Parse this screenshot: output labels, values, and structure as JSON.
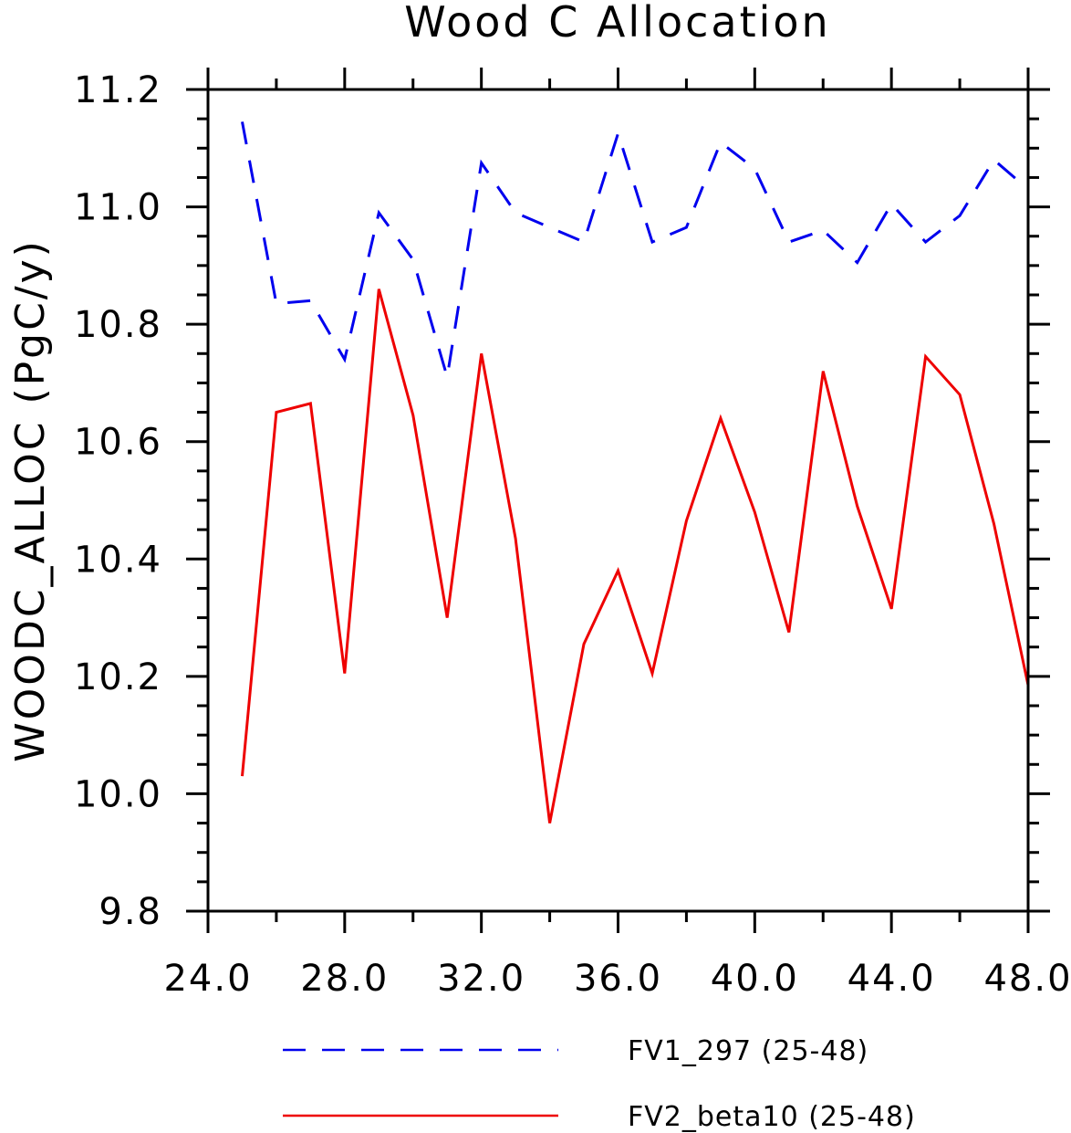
{
  "chart_data": {
    "type": "line",
    "title": "Wood C Allocation",
    "xlabel": "",
    "ylabel": "WOODC_ALLOC  (PgC/y)",
    "xlim": [
      24,
      48
    ],
    "ylim": [
      9.8,
      11.2
    ],
    "x_ticks": [
      24,
      28,
      32,
      36,
      40,
      44,
      48
    ],
    "x_tick_labels": [
      "24.0",
      "28.0",
      "32.0",
      "36.0",
      "40.0",
      "44.0",
      "48.0"
    ],
    "y_ticks": [
      9.8,
      10.0,
      10.2,
      10.4,
      10.6,
      10.8,
      11.0,
      11.2
    ],
    "y_tick_labels": [
      "9.8",
      "10.0",
      "10.2",
      "10.4",
      "10.6",
      "10.8",
      "11.0",
      "11.2"
    ],
    "grid": false,
    "legend_position": "bottom",
    "x": [
      25,
      26,
      27,
      28,
      29,
      30,
      31,
      32,
      33,
      34,
      35,
      36,
      37,
      38,
      39,
      40,
      41,
      42,
      43,
      44,
      45,
      46,
      47,
      48
    ],
    "series": [
      {
        "name": "FV1_297 (25-48)",
        "color": "#0000ee",
        "style": "dashed",
        "values": [
          11.145,
          10.835,
          10.84,
          10.74,
          10.99,
          10.91,
          10.71,
          11.075,
          10.99,
          10.965,
          10.94,
          11.125,
          10.94,
          10.965,
          11.11,
          11.065,
          10.94,
          10.96,
          10.905,
          11.005,
          10.94,
          10.985,
          11.08,
          11.03
        ]
      },
      {
        "name": "FV2_beta10 (25-48)",
        "color": "#ee0000",
        "style": "solid",
        "values": [
          10.03,
          10.65,
          10.665,
          10.205,
          10.86,
          10.645,
          10.3,
          10.75,
          10.435,
          9.95,
          10.255,
          10.38,
          10.205,
          10.465,
          10.64,
          10.48,
          10.275,
          10.72,
          10.49,
          10.315,
          10.745,
          10.68,
          10.46,
          10.185
        ]
      }
    ]
  }
}
